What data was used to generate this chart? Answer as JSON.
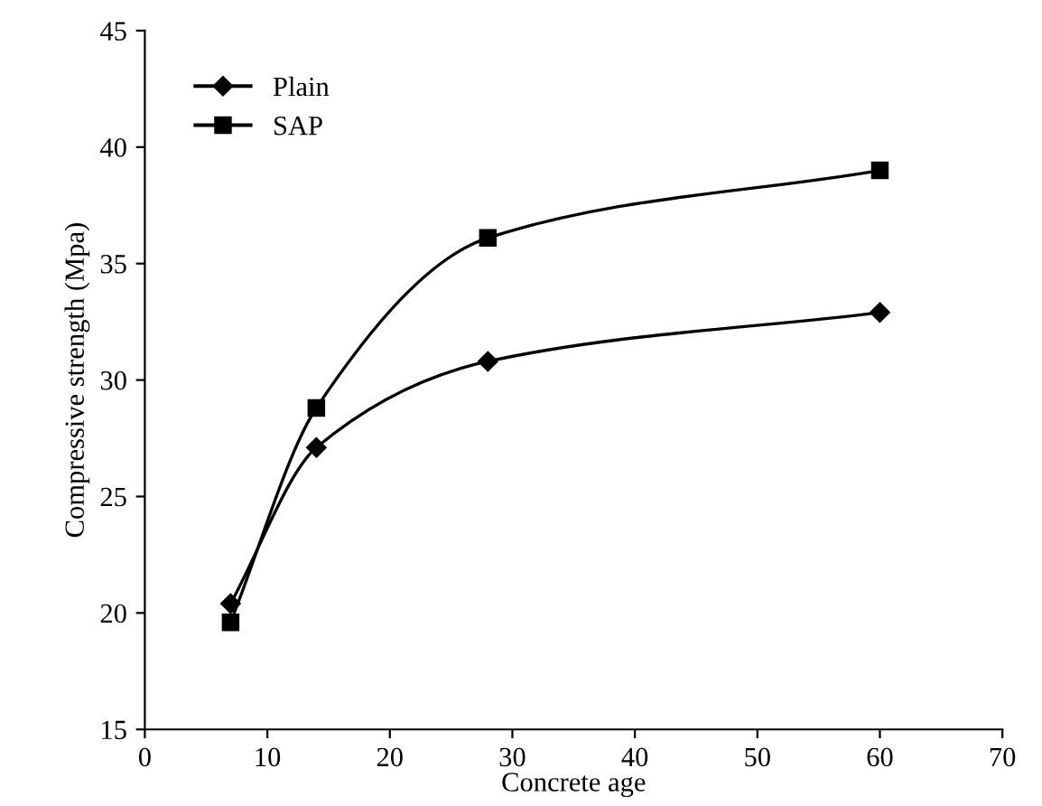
{
  "chart_data": {
    "type": "line",
    "xlabel": "Concrete age",
    "ylabel": "Compressive strength (Mpa)",
    "xlim": [
      0,
      70
    ],
    "xticks": [
      0,
      10,
      20,
      30,
      40,
      50,
      60,
      70
    ],
    "ylim": [
      15,
      45
    ],
    "yticks": [
      15,
      20,
      25,
      30,
      35,
      40,
      45
    ],
    "grid": false,
    "legend": "top left",
    "line_style": "solid",
    "series": [
      {
        "name": "Plain",
        "color": "#000000",
        "marker": "diamond",
        "x": [
          7,
          14,
          28,
          60
        ],
        "values": [
          20.4,
          27.1,
          30.8,
          32.9
        ]
      },
      {
        "name": "SAP",
        "color": "#000000",
        "marker": "square",
        "x": [
          7,
          14,
          28,
          60
        ],
        "values": [
          19.6,
          28.8,
          36.1,
          39.0
        ]
      }
    ]
  }
}
